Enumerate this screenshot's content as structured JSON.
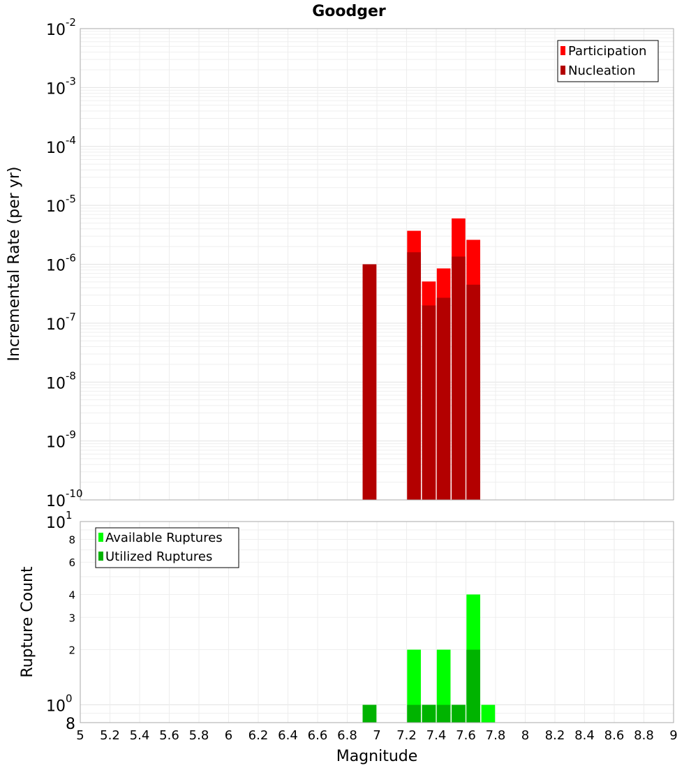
{
  "title": "Goodger",
  "xlabel": "Magnitude",
  "chart_data": [
    {
      "type": "bar",
      "ylabel": "Incremental Rate (per yr)",
      "yscale": "log",
      "ylim": [
        1e-10,
        0.01
      ],
      "xlim": [
        5,
        9
      ],
      "bin_width": 0.1,
      "y_ticks": [
        {
          "base": "10",
          "exp": "-2"
        },
        {
          "base": "10",
          "exp": "-3"
        },
        {
          "base": "10",
          "exp": "-4"
        },
        {
          "base": "10",
          "exp": "-5"
        },
        {
          "base": "10",
          "exp": "-6"
        },
        {
          "base": "10",
          "exp": "-7"
        },
        {
          "base": "10",
          "exp": "-8"
        },
        {
          "base": "10",
          "exp": "-9"
        },
        {
          "base": "10",
          "exp": "-10"
        }
      ],
      "legend": {
        "position": "top-right",
        "colors": [
          "#ff0000",
          "#b30000"
        ]
      },
      "series": [
        {
          "name": "Participation",
          "color": "#ff0000",
          "x": [
            6.95,
            7.25,
            7.35,
            7.45,
            7.55,
            7.65
          ],
          "values": [
            1e-06,
            3.7e-06,
            5.1e-07,
            8.5e-07,
            6e-06,
            2.6e-06
          ]
        },
        {
          "name": "Nucleation",
          "color": "#b30000",
          "x": [
            6.95,
            7.25,
            7.35,
            7.45,
            7.55,
            7.65
          ],
          "values": [
            1e-06,
            1.6e-06,
            2e-07,
            2.7e-07,
            1.35e-06,
            4.5e-07
          ]
        }
      ],
      "grid": true
    },
    {
      "type": "bar",
      "ylabel": "Rupture Count",
      "yscale": "log",
      "ylim": [
        0.8,
        10
      ],
      "xlim": [
        5,
        9
      ],
      "bin_width": 0.1,
      "y_major_ticks": [
        {
          "value": 10,
          "base": "10",
          "exp": "1"
        },
        {
          "value": 1,
          "base": "10",
          "exp": "0"
        }
      ],
      "y_minor_ticks": [
        {
          "value": 8,
          "label": "8"
        },
        {
          "value": 6,
          "label": "6"
        },
        {
          "value": 4,
          "label": "4"
        },
        {
          "value": 3,
          "label": "3"
        },
        {
          "value": 2,
          "label": "2"
        }
      ],
      "y_bottom_label": "8",
      "legend": {
        "position": "top-left",
        "colors": [
          "#00ff00",
          "#00b300"
        ]
      },
      "series": [
        {
          "name": "Available Ruptures",
          "color": "#00ff00",
          "x": [
            6.95,
            7.25,
            7.35,
            7.45,
            7.55,
            7.65,
            7.75
          ],
          "values": [
            1,
            2,
            1,
            2,
            1,
            4,
            1
          ]
        },
        {
          "name": "Utilized Ruptures",
          "color": "#00b300",
          "x": [
            6.95,
            7.25,
            7.35,
            7.45,
            7.55,
            7.65
          ],
          "values": [
            1,
            1,
            1,
            1,
            1,
            2
          ]
        }
      ],
      "grid": true
    }
  ],
  "x_ticks": [
    "5",
    "5.2",
    "5.4",
    "5.6",
    "5.8",
    "6",
    "6.2",
    "6.4",
    "6.6",
    "6.8",
    "7",
    "7.2",
    "7.4",
    "7.6",
    "7.8",
    "8",
    "8.2",
    "8.4",
    "8.6",
    "8.8",
    "9"
  ]
}
